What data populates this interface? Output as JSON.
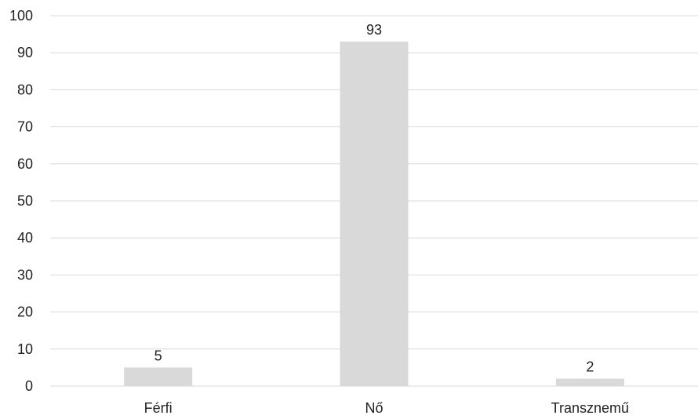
{
  "chart_data": {
    "type": "bar",
    "title": "",
    "xlabel": "",
    "ylabel": "",
    "categories": [
      "Férfi",
      "Nő",
      "Transznemű"
    ],
    "values": [
      5,
      93,
      2
    ],
    "data_labels": [
      "5",
      "93",
      "2"
    ],
    "ylim": [
      0,
      100
    ],
    "yticks": [
      0,
      10,
      20,
      30,
      40,
      50,
      60,
      70,
      80,
      90,
      100
    ],
    "grid": true,
    "legend": "none",
    "bar_color": "#d9d9d9",
    "grid_color": "#d9d9d9",
    "text_color": "#222222"
  }
}
